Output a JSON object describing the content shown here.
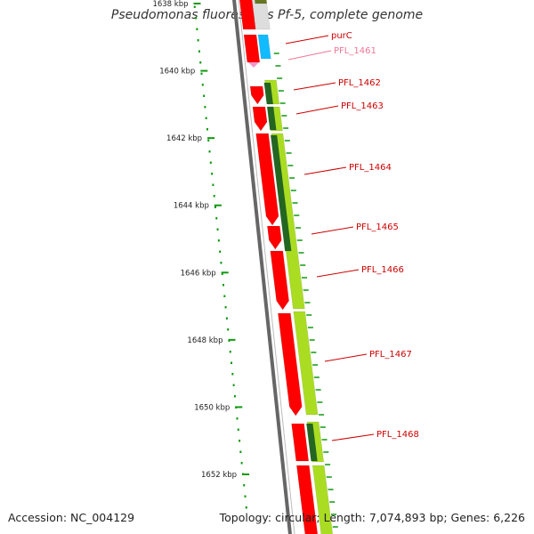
{
  "title": "Pseudomonas fluorescens Pf-5, complete genome",
  "footer": {
    "accession": "Accession: NC_004129",
    "summary": "Topology: circular; Length: 7,074,893 bp; Genes: 6,226"
  },
  "colors": {
    "cds": "#ff0000",
    "rna": "#00aaff",
    "gene": "#aadd22",
    "gene_dark": "#226622",
    "axis": "#666666",
    "ticks": "#119911",
    "label_main": "#cc0000",
    "label_faint": "#ee7799"
  },
  "scale": {
    "unit": "kbp",
    "ticks": [
      {
        "kbp": 1638,
        "label": "1638 kbp"
      },
      {
        "kbp": 1640,
        "label": "1640 kbp"
      },
      {
        "kbp": 1642,
        "label": "1642 kbp"
      },
      {
        "kbp": 1644,
        "label": "1644 kbp"
      },
      {
        "kbp": 1646,
        "label": "1646 kbp"
      },
      {
        "kbp": 1648,
        "label": "1648 kbp"
      },
      {
        "kbp": 1650,
        "label": "1650 kbp"
      },
      {
        "kbp": 1652,
        "label": "1652 kbp"
      }
    ]
  },
  "features": [
    {
      "name": "purC",
      "type": "CDS"
    },
    {
      "name": "PFL_1461",
      "type": "RNA"
    },
    {
      "name": "PFL_1462",
      "type": "CDS"
    },
    {
      "name": "PFL_1463",
      "type": "CDS"
    },
    {
      "name": "PFL_1464",
      "type": "CDS"
    },
    {
      "name": "PFL_1465",
      "type": "CDS"
    },
    {
      "name": "PFL_1466",
      "type": "CDS"
    },
    {
      "name": "PFL_1467",
      "type": "CDS"
    },
    {
      "name": "PFL_1468",
      "type": "CDS"
    }
  ]
}
